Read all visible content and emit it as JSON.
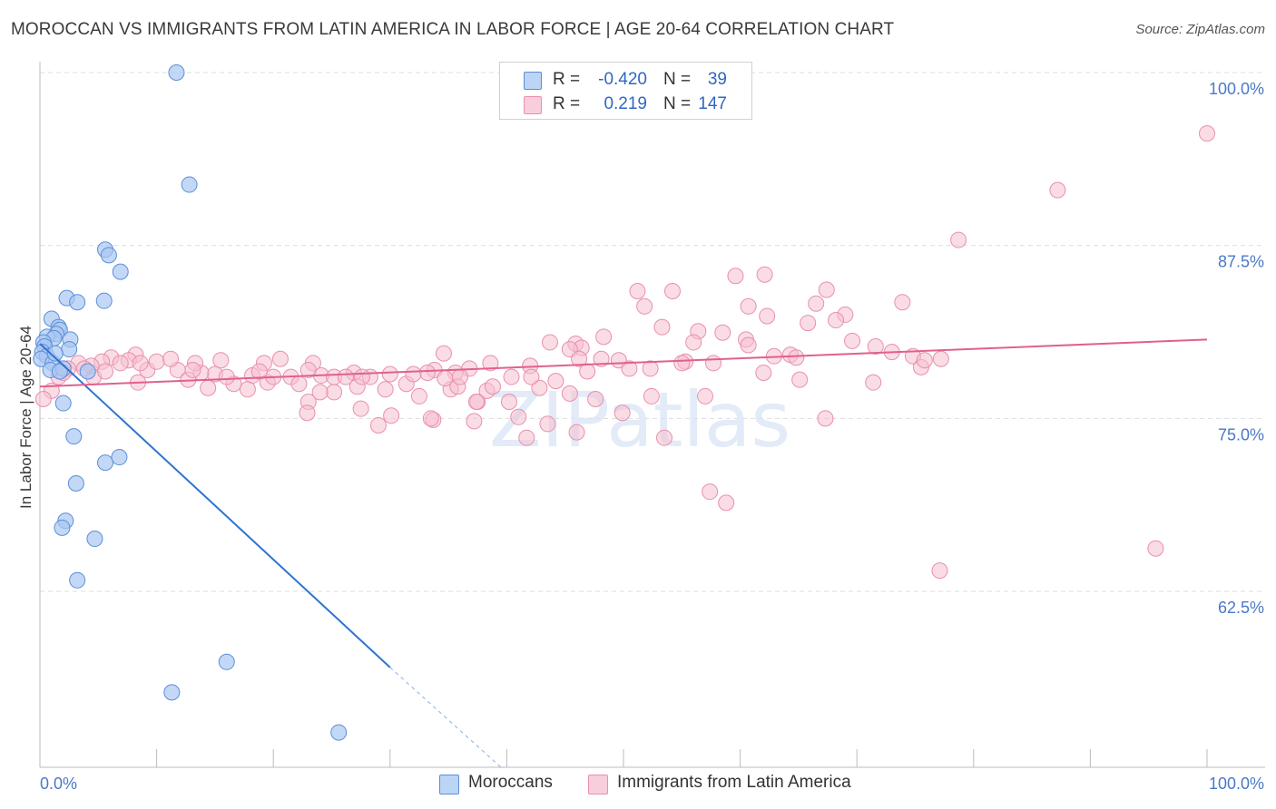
{
  "title": "MOROCCAN VS IMMIGRANTS FROM LATIN AMERICA IN LABOR FORCE | AGE 20-64 CORRELATION CHART",
  "source": "Source: ZipAtlas.com",
  "watermark": "ZIPatlas",
  "colors": {
    "blue_fill": "#a9c8f2",
    "blue_stroke": "#5b8fd8",
    "blue_line": "#2e74d0",
    "pink_fill": "#f6bfd0",
    "pink_stroke": "#e890ad",
    "pink_line": "#e0608e",
    "tick_text": "#4a78c8",
    "grid": "#dddddd"
  },
  "legend": {
    "rows": [
      {
        "r_label": "R =",
        "r_value": "-0.420",
        "n_label": "N =",
        "n_value": "39"
      },
      {
        "r_label": "R =",
        "r_value": "0.219",
        "n_label": "N =",
        "n_value": "147"
      }
    ]
  },
  "bottom_legend": {
    "items": [
      "Moroccans",
      "Immigrants from Latin America"
    ]
  },
  "chart_data": {
    "type": "scatter",
    "title": "MOROCCAN VS IMMIGRANTS FROM LATIN AMERICA IN LABOR FORCE | AGE 20-64 CORRELATION CHART",
    "xlabel": "",
    "ylabel": "In Labor Force | Age 20-64",
    "xlim": [
      0,
      100
    ],
    "ylim": [
      52.5,
      101.5
    ],
    "x_tick_labels": [
      "0.0%",
      "100.0%"
    ],
    "y_ticks": [
      100.0,
      87.5,
      75.0,
      62.5
    ],
    "y_tick_labels": [
      "100.0%",
      "87.5%",
      "75.0%",
      "62.5%"
    ],
    "grid": true,
    "legend_position": "top-center",
    "series": [
      {
        "name": "Moroccans",
        "color": "#a9c8f2",
        "points": [
          [
            11.7,
            100.0
          ],
          [
            12.8,
            91.9
          ],
          [
            5.6,
            87.2
          ],
          [
            5.9,
            86.8
          ],
          [
            6.9,
            85.6
          ],
          [
            2.3,
            83.7
          ],
          [
            3.2,
            83.4
          ],
          [
            5.5,
            83.5
          ],
          [
            1.0,
            82.2
          ],
          [
            1.6,
            81.6
          ],
          [
            1.7,
            81.4
          ],
          [
            1.4,
            81.1
          ],
          [
            0.6,
            80.9
          ],
          [
            1.2,
            80.8
          ],
          [
            2.6,
            80.7
          ],
          [
            0.3,
            80.5
          ],
          [
            0.4,
            80.2
          ],
          [
            2.5,
            80.0
          ],
          [
            0.2,
            79.8
          ],
          [
            0.6,
            79.5
          ],
          [
            0.1,
            79.3
          ],
          [
            1.1,
            79.0
          ],
          [
            0.9,
            78.5
          ],
          [
            2.0,
            78.6
          ],
          [
            1.7,
            78.4
          ],
          [
            4.1,
            78.4
          ],
          [
            2.0,
            76.1
          ],
          [
            2.9,
            73.7
          ],
          [
            5.6,
            71.8
          ],
          [
            6.8,
            72.2
          ],
          [
            3.1,
            70.3
          ],
          [
            2.2,
            67.6
          ],
          [
            1.9,
            67.1
          ],
          [
            4.7,
            66.3
          ],
          [
            3.2,
            63.3
          ],
          [
            16.0,
            57.4
          ],
          [
            11.3,
            55.2
          ],
          [
            25.6,
            52.3
          ],
          [
            1.3,
            79.7
          ]
        ]
      },
      {
        "name": "Immigrants from Latin America",
        "color": "#f6bfd0",
        "points": [
          [
            100.0,
            95.6
          ],
          [
            87.2,
            91.5
          ],
          [
            78.7,
            87.9
          ],
          [
            59.6,
            85.3
          ],
          [
            62.1,
            85.4
          ],
          [
            51.2,
            84.2
          ],
          [
            54.2,
            84.2
          ],
          [
            67.4,
            84.3
          ],
          [
            66.5,
            83.3
          ],
          [
            73.9,
            83.4
          ],
          [
            51.8,
            83.1
          ],
          [
            60.7,
            83.1
          ],
          [
            69.0,
            82.5
          ],
          [
            62.3,
            82.4
          ],
          [
            68.2,
            82.1
          ],
          [
            65.8,
            81.9
          ],
          [
            53.3,
            81.6
          ],
          [
            56.4,
            81.3
          ],
          [
            58.5,
            81.2
          ],
          [
            48.3,
            80.9
          ],
          [
            60.5,
            80.7
          ],
          [
            69.6,
            80.6
          ],
          [
            56.0,
            80.5
          ],
          [
            60.7,
            80.3
          ],
          [
            45.9,
            80.4
          ],
          [
            43.7,
            80.5
          ],
          [
            46.4,
            80.1
          ],
          [
            71.6,
            80.2
          ],
          [
            73.0,
            79.8
          ],
          [
            45.4,
            80.0
          ],
          [
            64.3,
            79.6
          ],
          [
            62.9,
            79.5
          ],
          [
            48.1,
            79.3
          ],
          [
            49.6,
            79.2
          ],
          [
            46.2,
            79.3
          ],
          [
            38.6,
            79.0
          ],
          [
            34.6,
            79.7
          ],
          [
            74.8,
            79.5
          ],
          [
            77.2,
            79.3
          ],
          [
            55.3,
            79.1
          ],
          [
            57.7,
            79.0
          ],
          [
            64.8,
            79.4
          ],
          [
            75.5,
            78.7
          ],
          [
            50.5,
            78.6
          ],
          [
            42.0,
            78.8
          ],
          [
            33.8,
            78.5
          ],
          [
            36.8,
            78.6
          ],
          [
            33.2,
            78.3
          ],
          [
            46.9,
            78.4
          ],
          [
            35.6,
            78.3
          ],
          [
            26.9,
            78.3
          ],
          [
            28.3,
            78.0
          ],
          [
            21.5,
            78.0
          ],
          [
            24.1,
            78.1
          ],
          [
            18.2,
            78.1
          ],
          [
            15.0,
            78.2
          ],
          [
            13.8,
            78.3
          ],
          [
            11.8,
            78.5
          ],
          [
            8.2,
            79.6
          ],
          [
            9.2,
            78.5
          ],
          [
            10.0,
            79.1
          ],
          [
            7.6,
            79.2
          ],
          [
            6.1,
            79.4
          ],
          [
            5.3,
            79.1
          ],
          [
            4.4,
            78.8
          ],
          [
            3.3,
            79.0
          ],
          [
            2.4,
            78.6
          ],
          [
            1.6,
            78.0
          ],
          [
            1.0,
            77.0
          ],
          [
            0.3,
            76.4
          ],
          [
            62.0,
            78.3
          ],
          [
            65.1,
            77.8
          ],
          [
            71.4,
            77.6
          ],
          [
            31.4,
            77.5
          ],
          [
            27.2,
            77.3
          ],
          [
            22.2,
            77.5
          ],
          [
            19.5,
            77.6
          ],
          [
            16.6,
            77.5
          ],
          [
            25.2,
            76.9
          ],
          [
            29.6,
            77.1
          ],
          [
            32.5,
            76.6
          ],
          [
            35.2,
            77.1
          ],
          [
            37.5,
            76.2
          ],
          [
            40.2,
            76.2
          ],
          [
            42.8,
            77.2
          ],
          [
            45.4,
            76.8
          ],
          [
            47.6,
            76.4
          ],
          [
            49.9,
            75.4
          ],
          [
            52.4,
            76.6
          ],
          [
            57.0,
            76.6
          ],
          [
            23.0,
            76.2
          ],
          [
            24.0,
            76.9
          ],
          [
            22.9,
            75.4
          ],
          [
            27.5,
            75.7
          ],
          [
            30.1,
            75.2
          ],
          [
            33.7,
            74.9
          ],
          [
            37.2,
            74.8
          ],
          [
            41.0,
            75.1
          ],
          [
            43.5,
            74.6
          ],
          [
            46.0,
            74.0
          ],
          [
            29.0,
            74.5
          ],
          [
            33.5,
            75.0
          ],
          [
            37.4,
            76.2
          ],
          [
            38.3,
            77.0
          ],
          [
            35.8,
            77.3
          ],
          [
            25.2,
            78.0
          ],
          [
            23.4,
            79.0
          ],
          [
            17.8,
            77.1
          ],
          [
            14.4,
            77.2
          ],
          [
            12.7,
            77.8
          ],
          [
            13.3,
            79.0
          ],
          [
            15.5,
            79.2
          ],
          [
            19.2,
            79.0
          ],
          [
            20.6,
            79.3
          ],
          [
            6.9,
            79.0
          ],
          [
            11.2,
            79.3
          ],
          [
            8.6,
            79.0
          ],
          [
            8.4,
            77.6
          ],
          [
            4.6,
            78.0
          ],
          [
            5.6,
            78.4
          ],
          [
            3.8,
            78.6
          ],
          [
            2.0,
            78.3
          ],
          [
            13.1,
            78.5
          ],
          [
            16.0,
            78.0
          ],
          [
            20.0,
            78.0
          ],
          [
            23.0,
            78.5
          ],
          [
            26.2,
            78.0
          ],
          [
            27.6,
            78.0
          ],
          [
            30.0,
            78.2
          ],
          [
            32.0,
            78.2
          ],
          [
            34.7,
            77.9
          ],
          [
            36.0,
            78.0
          ],
          [
            38.8,
            77.3
          ],
          [
            40.4,
            78.0
          ],
          [
            42.1,
            78.0
          ],
          [
            53.5,
            73.6
          ],
          [
            57.4,
            69.7
          ],
          [
            58.8,
            68.9
          ],
          [
            75.8,
            79.2
          ],
          [
            41.7,
            73.6
          ],
          [
            95.6,
            65.6
          ],
          [
            77.1,
            64.0
          ],
          [
            67.3,
            75.0
          ],
          [
            44.2,
            77.7
          ],
          [
            52.3,
            78.6
          ],
          [
            55.0,
            79.0
          ],
          [
            18.8,
            78.4
          ]
        ]
      }
    ],
    "trend_lines": [
      {
        "series": "Moroccans",
        "x": [
          0.0,
          30.0
        ],
        "y": [
          80.4,
          57.0
        ],
        "dashed_extension_to_x": 39.5
      },
      {
        "series": "Immigrants from Latin America",
        "x": [
          0.0,
          100.0
        ],
        "y": [
          77.3,
          80.7
        ]
      }
    ]
  }
}
